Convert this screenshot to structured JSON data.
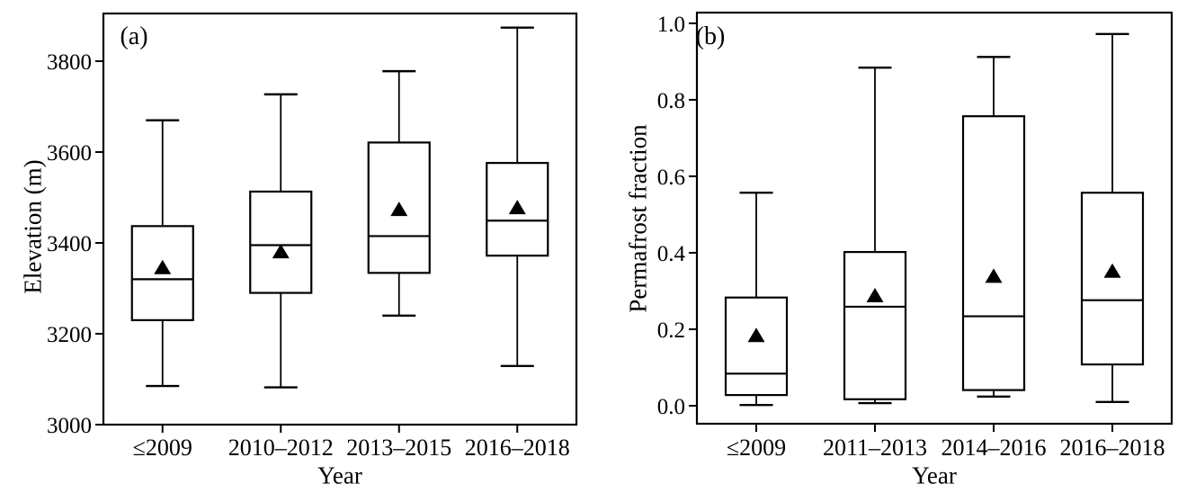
{
  "colors": {
    "stroke": "#000000",
    "background": "#ffffff",
    "marker_fill": "#000000"
  },
  "chart_data": [
    {
      "type": "boxplot",
      "panel_label": "(a)",
      "xlabel": "Year",
      "ylabel": "Elevation (m)",
      "ylim": [
        3000,
        3905
      ],
      "yticks": [
        3000,
        3200,
        3400,
        3600,
        3800
      ],
      "ytick_labels": [
        "3000",
        "3200",
        "3400",
        "3600",
        "3800"
      ],
      "categories": [
        "≤2009",
        "2010–2012",
        "2013–2015",
        "2016–2018"
      ],
      "mean_marker": "filled-triangle-up",
      "boxes": [
        {
          "category": "≤2009",
          "whisker_low": 3085,
          "q1": 3230,
          "median": 3320,
          "mean": 3345,
          "q3": 3437,
          "whisker_high": 3670
        },
        {
          "category": "2010–2012",
          "whisker_low": 3082,
          "q1": 3290,
          "median": 3395,
          "mean": 3380,
          "q3": 3513,
          "whisker_high": 3727
        },
        {
          "category": "2013–2015",
          "whisker_low": 3240,
          "q1": 3334,
          "median": 3415,
          "mean": 3473,
          "q3": 3621,
          "whisker_high": 3778
        },
        {
          "category": "2016–2018",
          "whisker_low": 3129,
          "q1": 3372,
          "median": 3449,
          "mean": 3477,
          "q3": 3576,
          "whisker_high": 3874
        }
      ]
    },
    {
      "type": "boxplot",
      "panel_label": "(b)",
      "xlabel": "Year",
      "ylabel": "Permafrost fraction",
      "ylim": [
        -0.047,
        1.028
      ],
      "yticks": [
        0.0,
        0.2,
        0.4,
        0.6,
        0.8,
        1.0
      ],
      "ytick_labels": [
        "0.0",
        "0.2",
        "0.4",
        "0.6",
        "0.8",
        "1.0"
      ],
      "categories": [
        "≤2009",
        "2011–2013",
        "2014–2016",
        "2016–2018"
      ],
      "mean_marker": "filled-triangle-up",
      "boxes": [
        {
          "category": "≤2009",
          "whisker_low": 0.002,
          "q1": 0.028,
          "median": 0.084,
          "mean": 0.183,
          "q3": 0.283,
          "whisker_high": 0.557
        },
        {
          "category": "2011–2013",
          "whisker_low": 0.007,
          "q1": 0.017,
          "median": 0.259,
          "mean": 0.287,
          "q3": 0.402,
          "whisker_high": 0.884
        },
        {
          "category": "2014–2016",
          "whisker_low": 0.024,
          "q1": 0.041,
          "median": 0.234,
          "mean": 0.338,
          "q3": 0.757,
          "whisker_high": 0.912
        },
        {
          "category": "2016–2018",
          "whisker_low": 0.01,
          "q1": 0.108,
          "median": 0.276,
          "mean": 0.351,
          "q3": 0.557,
          "whisker_high": 0.972
        }
      ]
    }
  ]
}
